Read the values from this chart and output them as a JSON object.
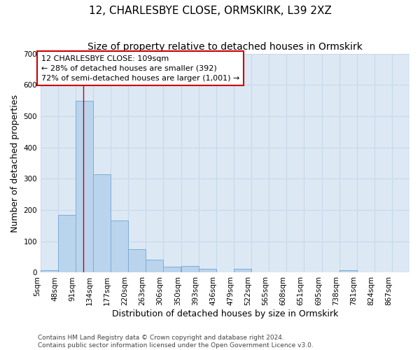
{
  "title1": "12, CHARLESBYE CLOSE, ORMSKIRK, L39 2XZ",
  "title2": "Size of property relative to detached houses in Ormskirk",
  "xlabel": "Distribution of detached houses by size in Ormskirk",
  "ylabel": "Number of detached properties",
  "bin_edges": [
    5,
    48,
    91,
    134,
    177,
    220,
    263,
    306,
    350,
    393,
    436,
    479,
    522,
    565,
    608,
    651,
    695,
    738,
    781,
    824,
    867
  ],
  "bar_heights": [
    8,
    185,
    550,
    315,
    167,
    75,
    42,
    18,
    22,
    13,
    0,
    12,
    0,
    0,
    0,
    0,
    0,
    8,
    0,
    0
  ],
  "bar_color": "#bad4ed",
  "bar_edgecolor": "#7eadd4",
  "vline_color": "#cc0000",
  "vline_x": 109,
  "annotation_line1": "12 CHARLESBYE CLOSE: 109sqm",
  "annotation_line2": "← 28% of detached houses are smaller (392)",
  "annotation_line3": "72% of semi-detached houses are larger (1,001) →",
  "annotation_box_color": "#ffffff",
  "annotation_box_edgecolor": "#cc0000",
  "ylim": [
    0,
    700
  ],
  "yticks": [
    0,
    100,
    200,
    300,
    400,
    500,
    600,
    700
  ],
  "grid_color": "#c8d8ea",
  "background_color": "#dce8f4",
  "footer_line1": "Contains HM Land Registry data © Crown copyright and database right 2024.",
  "footer_line2": "Contains public sector information licensed under the Open Government Licence v3.0.",
  "title_fontsize": 11,
  "subtitle_fontsize": 10,
  "axis_label_fontsize": 9,
  "tick_fontsize": 7.5,
  "annotation_fontsize": 8,
  "footer_fontsize": 6.5
}
